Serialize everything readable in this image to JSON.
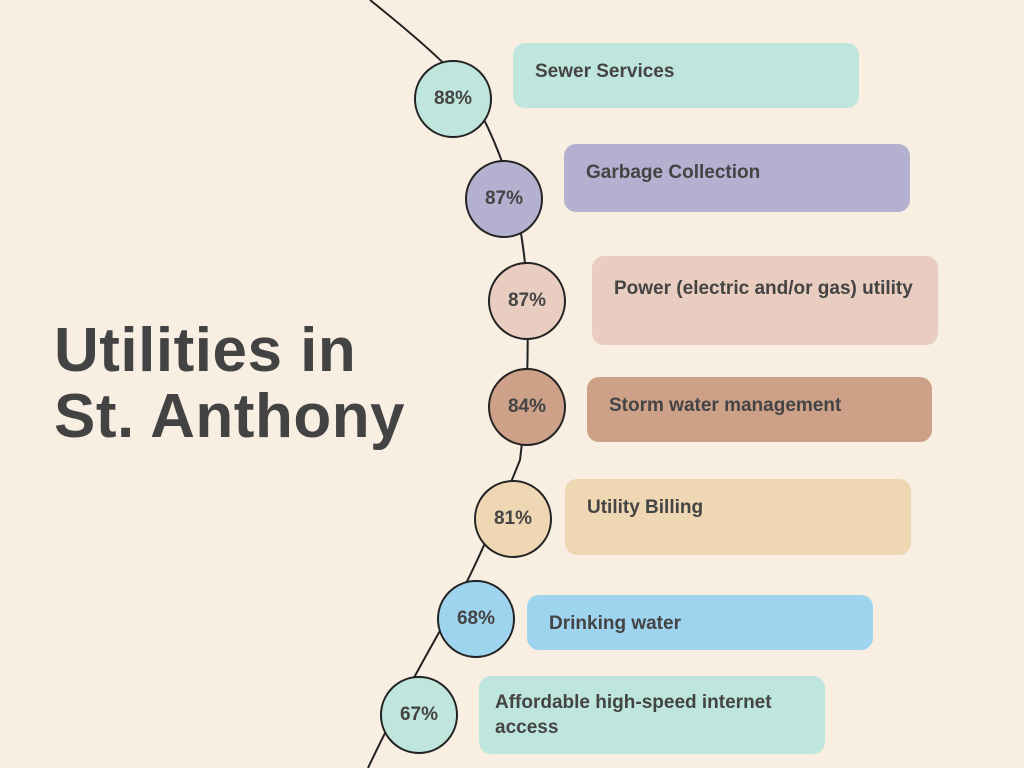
{
  "title": {
    "line1": "Utilities in",
    "line2": "St. Anthony"
  },
  "items": [
    {
      "label": "Sewer Services",
      "percent": "88%",
      "node_color": "#bfe6dd",
      "label_color": "#bfe6dd"
    },
    {
      "label": "Garbage Collection",
      "percent": "87%",
      "node_color": "#b3b1cf",
      "label_color": "#b3b1cf"
    },
    {
      "label": "Power (electric and/or gas) utility",
      "percent": "87%",
      "node_color": "#e8cdc0",
      "label_color": "#e8cdc0"
    },
    {
      "label": "Storm water management",
      "percent": "84%",
      "node_color": "#cda188",
      "label_color": "#cda188"
    },
    {
      "label": "Utility Billing",
      "percent": "81%",
      "node_color": "#f0d7b3",
      "label_color": "#f0d7b3"
    },
    {
      "label": "Drinking water",
      "percent": "68%",
      "node_color": "#9fd4ef",
      "label_color": "#9fd4ef"
    },
    {
      "label": "Affordable high-speed internet access",
      "percent": "67%",
      "node_color": "#bfe6dd",
      "label_color": "#bfe6dd"
    }
  ]
}
